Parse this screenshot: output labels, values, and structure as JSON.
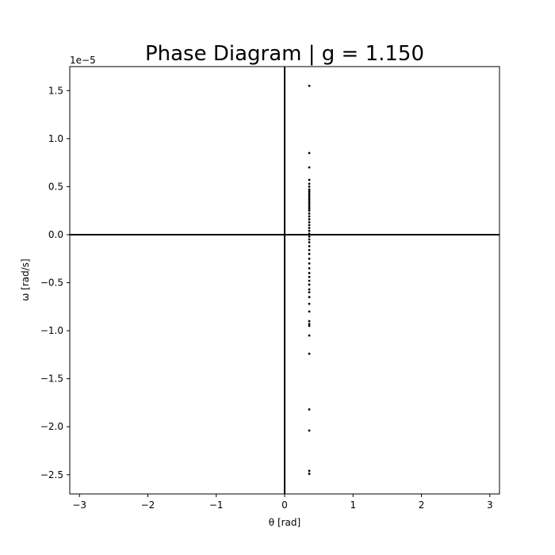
{
  "chart_data": {
    "type": "scatter",
    "title": "Phase Diagram | g = 1.150",
    "xlabel": "θ [rad]",
    "ylabel": "ω [rad/s]",
    "y_offset_label": "1e−5",
    "xlim": [
      -3.1416,
      3.1416
    ],
    "ylim": [
      -2.7,
      1.75
    ],
    "y_scale_factor": 1e-05,
    "x_ticks": [
      -3,
      -2,
      -1,
      0,
      1,
      2,
      3
    ],
    "x_tick_labels": [
      "−3",
      "−2",
      "−1",
      "0",
      "1",
      "2",
      "3"
    ],
    "y_ticks": [
      -2.5,
      -2.0,
      -1.5,
      -1.0,
      -0.5,
      0.0,
      0.5,
      1.0,
      1.5
    ],
    "y_tick_labels": [
      "−2.5",
      "−2.0",
      "−1.5",
      "−1.0",
      "−0.5",
      "0.0",
      "0.5",
      "1.0",
      "1.5"
    ],
    "grid": false,
    "reference_lines": {
      "x": 0,
      "y": 0
    },
    "marker_color": "#000000",
    "series": [
      {
        "x": [
          0.36,
          0.36,
          0.36,
          0.36,
          0.36,
          0.36,
          0.36,
          0.36,
          0.36,
          0.36,
          0.36,
          0.36,
          0.36,
          0.36,
          0.36,
          0.36,
          0.36,
          0.36,
          0.36,
          0.36,
          0.36,
          0.36,
          0.36,
          0.36,
          0.36,
          0.36,
          0.36,
          0.36,
          0.36,
          0.36,
          0.36,
          0.36,
          0.36,
          0.36,
          0.36,
          0.36,
          0.36,
          0.36,
          0.36,
          0.36,
          0.36,
          0.36,
          0.36,
          0.36,
          0.36,
          0.36,
          0.36,
          0.36,
          0.36,
          0.36,
          0.36,
          0.36,
          0.36
        ],
        "y": [
          1.55,
          0.85,
          0.7,
          0.57,
          0.53,
          0.5,
          0.47,
          0.45,
          0.43,
          0.41,
          0.39,
          0.37,
          0.35,
          0.33,
          0.31,
          0.29,
          0.27,
          0.25,
          0.22,
          0.19,
          0.16,
          0.13,
          0.1,
          0.07,
          0.04,
          0.01,
          -0.02,
          -0.05,
          -0.08,
          -0.12,
          -0.16,
          -0.2,
          -0.25,
          -0.3,
          -0.35,
          -0.4,
          -0.44,
          -0.48,
          -0.52,
          -0.57,
          -0.6,
          -0.65,
          -0.72,
          -0.8,
          -0.9,
          -0.93,
          -0.95,
          -1.05,
          -1.24,
          -1.82,
          -2.04,
          -2.46,
          -2.49
        ]
      }
    ]
  }
}
